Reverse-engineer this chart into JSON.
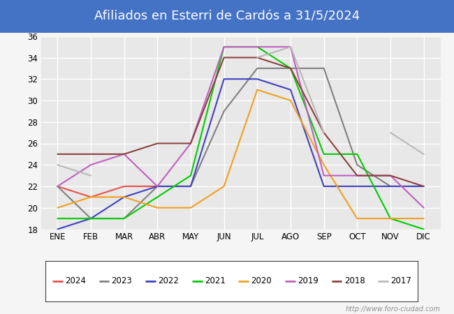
{
  "title": "Afiliados en Esterri de Cardós a 31/5/2024",
  "title_bgcolor": "#4472c4",
  "title_color": "white",
  "months": [
    "ENE",
    "FEB",
    "MAR",
    "ABR",
    "MAY",
    "JUN",
    "JUL",
    "AGO",
    "SEP",
    "OCT",
    "NOV",
    "DIC"
  ],
  "ylim": [
    18,
    36
  ],
  "yticks": [
    18,
    20,
    22,
    24,
    26,
    28,
    30,
    32,
    34,
    36
  ],
  "series": {
    "2024": {
      "color": "#e8534a",
      "data": [
        22,
        21,
        22,
        22,
        22,
        null,
        null,
        null,
        null,
        null,
        null,
        null
      ]
    },
    "2023": {
      "color": "#808080",
      "data": [
        22,
        19,
        19,
        22,
        22,
        29,
        33,
        33,
        33,
        24,
        22,
        22
      ]
    },
    "2022": {
      "color": "#4040c0",
      "data": [
        18,
        19,
        21,
        22,
        22,
        32,
        32,
        31,
        22,
        22,
        22,
        22
      ]
    },
    "2021": {
      "color": "#00cc00",
      "data": [
        19,
        19,
        19,
        21,
        23,
        35,
        35,
        33,
        25,
        25,
        19,
        18
      ]
    },
    "2020": {
      "color": "#f0a020",
      "data": [
        20,
        21,
        21,
        20,
        20,
        22,
        31,
        30,
        24,
        19,
        19,
        19
      ]
    },
    "2019": {
      "color": "#c060c0",
      "data": [
        22,
        24,
        25,
        22,
        26,
        35,
        35,
        35,
        23,
        23,
        23,
        20
      ]
    },
    "2018": {
      "color": "#8b4040",
      "data": [
        25,
        25,
        25,
        26,
        26,
        34,
        34,
        33,
        27,
        23,
        23,
        22
      ]
    },
    "2017": {
      "color": "#b8b8b8",
      "data": [
        24,
        23,
        null,
        null,
        null,
        null,
        34,
        35,
        27,
        null,
        27,
        25
      ]
    }
  },
  "legend_order": [
    "2024",
    "2023",
    "2022",
    "2021",
    "2020",
    "2019",
    "2018",
    "2017"
  ],
  "watermark": "http://www.foro-ciudad.com",
  "outer_bg": "#f5f5f5",
  "plot_bg_color": "#e8e8e8",
  "grid_color": "white",
  "title_fontsize": 13
}
